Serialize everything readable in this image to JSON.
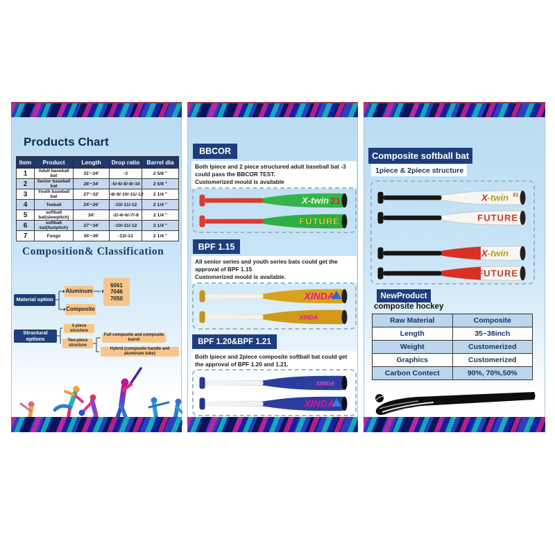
{
  "left_panel": {
    "title": "Products Chart",
    "table": {
      "headers": [
        "Item",
        "Product",
        "Length",
        "Drop ratio",
        "Barrel dia"
      ],
      "rows": [
        [
          "1",
          "Adult baseball bat",
          "31'~34'",
          "-3",
          "2 5/8 \""
        ],
        [
          "2",
          "Senior baseball bat",
          "28'~34'",
          "-5/-6/-8/-9/-10",
          "2 5/8 \""
        ],
        [
          "3",
          "Youth baseball bat",
          "27'~32'",
          "-8/-9/-10/-11/-12",
          "2 1/4 \""
        ],
        [
          "4",
          "Teeball",
          "24'~26'",
          "-10/-11/-12",
          "2 1/4 \""
        ],
        [
          "5",
          "softball bat(slowpitch)",
          "34'",
          "-2/-4/-6/-7/-8",
          "2 1/4 \""
        ],
        [
          "6",
          "softball bat(fastpitch)",
          "27'~34'",
          "-10/-11/-12",
          "2 1/4 \""
        ],
        [
          "7",
          "Fungo",
          "35'~36'",
          "-12/-13",
          "2 1/4 \""
        ]
      ]
    },
    "composition_title": "Composition& Classification",
    "flowchart": {
      "material_label": "Material option",
      "aluminum": "Aluminum",
      "composite": "Composite",
      "alloys": [
        "6061",
        "7046",
        "7050"
      ],
      "structural_label": "Structural options",
      "one_piece": "1-piece structure",
      "two_piece": "Two-piece structure",
      "full_composite": "Full composite and composite barrel",
      "hybrid": "Hybrid (composite handle and aluminum tube)"
    }
  },
  "middle_panel": {
    "sections": [
      {
        "title": "BBCOR",
        "body": "Both lpiece and 2 piece structured adult baseball bat -3 could pass the BBCOR TEST.",
        "note": "Customerized mould is available"
      },
      {
        "title": "BPF 1.15",
        "body": "All senior series and youth series bats could get the approval of BPF 1.15",
        "note": "Customerized mould is available."
      },
      {
        "title": "BPF 1.20&BPF 1.21",
        "body": "Both lpiece and 2piece composite softball bat could get the approval of BPF 1.20 and 1.21.",
        "note": ""
      }
    ]
  },
  "right_panel": {
    "title": "Composite softball bat",
    "subtitle": "1piece & 2piece structure",
    "new_product": {
      "badge": "NewProduct",
      "name": "composite hockey",
      "table": [
        [
          "Raw Material",
          "Composite"
        ],
        [
          "Length",
          "35~38inch"
        ],
        [
          "Weight",
          "Customerized"
        ],
        [
          "Graphics",
          "Customerized"
        ],
        [
          "Carbon Contect",
          "90%, 70%,50%"
        ]
      ]
    }
  },
  "brands": {
    "xtwin_prefix": "X",
    "xtwin_suffix": "-twin",
    "xtwin_num": "21",
    "future": "FUTURE",
    "xinda": "XINDA"
  },
  "colors": {
    "navy_badge": "#1e3d7c",
    "panel_blue": "#bcdcf2",
    "table_header": "#20396b",
    "row_alt_blue": "#c6d9f0",
    "flow_orange": "#f7c68b",
    "bat_green": "#35b44a",
    "bat_gold": "#d9a31c",
    "bat_blue": "#2b3ea0",
    "bat_red": "#d93025",
    "brand_magenta": "#d81b8c"
  }
}
